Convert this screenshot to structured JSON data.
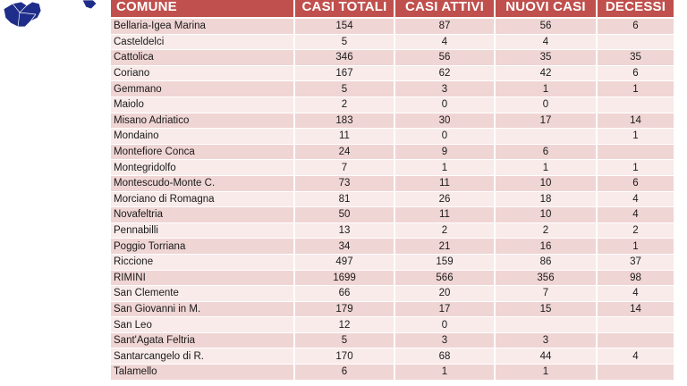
{
  "colors": {
    "header_bg": "#c0504d",
    "row_odd": "#efd5d4",
    "row_even": "#f8ebea",
    "map_fill": "#1f2d8a"
  },
  "table": {
    "headers": [
      "COMUNE",
      "CASI TOTALI",
      "CASI ATTIVI",
      "NUOVI CASI",
      "DECESSI"
    ],
    "rows": [
      [
        "Bellaria-Igea Marina",
        "154",
        "87",
        "56",
        "6"
      ],
      [
        "Casteldelci",
        "5",
        "4",
        "4",
        ""
      ],
      [
        "Cattolica",
        "346",
        "56",
        "35",
        "35"
      ],
      [
        "Coriano",
        "167",
        "62",
        "42",
        "6"
      ],
      [
        "Gemmano",
        "5",
        "3",
        "1",
        "1"
      ],
      [
        "Maiolo",
        "2",
        "0",
        "0",
        ""
      ],
      [
        "Misano Adriatico",
        "183",
        "30",
        "17",
        "14"
      ],
      [
        "Mondaino",
        "11",
        "0",
        "",
        "1"
      ],
      [
        "Montefiore Conca",
        "24",
        "9",
        "6",
        ""
      ],
      [
        "Montegridolfo",
        "7",
        "1",
        "1",
        "1"
      ],
      [
        "Montescudo-Monte C.",
        "73",
        "11",
        "10",
        "6"
      ],
      [
        "Morciano di Romagna",
        "81",
        "26",
        "18",
        "4"
      ],
      [
        "Novafeltria",
        "50",
        "11",
        "10",
        "4"
      ],
      [
        "Pennabilli",
        "13",
        "2",
        "2",
        "2"
      ],
      [
        "Poggio Torriana",
        "34",
        "21",
        "16",
        "1"
      ],
      [
        "Riccione",
        "497",
        "159",
        "86",
        "37"
      ],
      [
        "RIMINI",
        "1699",
        "566",
        "356",
        "98"
      ],
      [
        "San Clemente",
        "66",
        "20",
        "7",
        "4"
      ],
      [
        "San Giovanni in M.",
        "179",
        "17",
        "15",
        "14"
      ],
      [
        "San Leo",
        "12",
        "0",
        "",
        ""
      ],
      [
        "Sant'Agata Feltria",
        "5",
        "3",
        "3",
        ""
      ],
      [
        "Santarcangelo di R.",
        "170",
        "68",
        "44",
        "4"
      ],
      [
        "Talamello",
        "6",
        "1",
        "1",
        ""
      ]
    ]
  }
}
